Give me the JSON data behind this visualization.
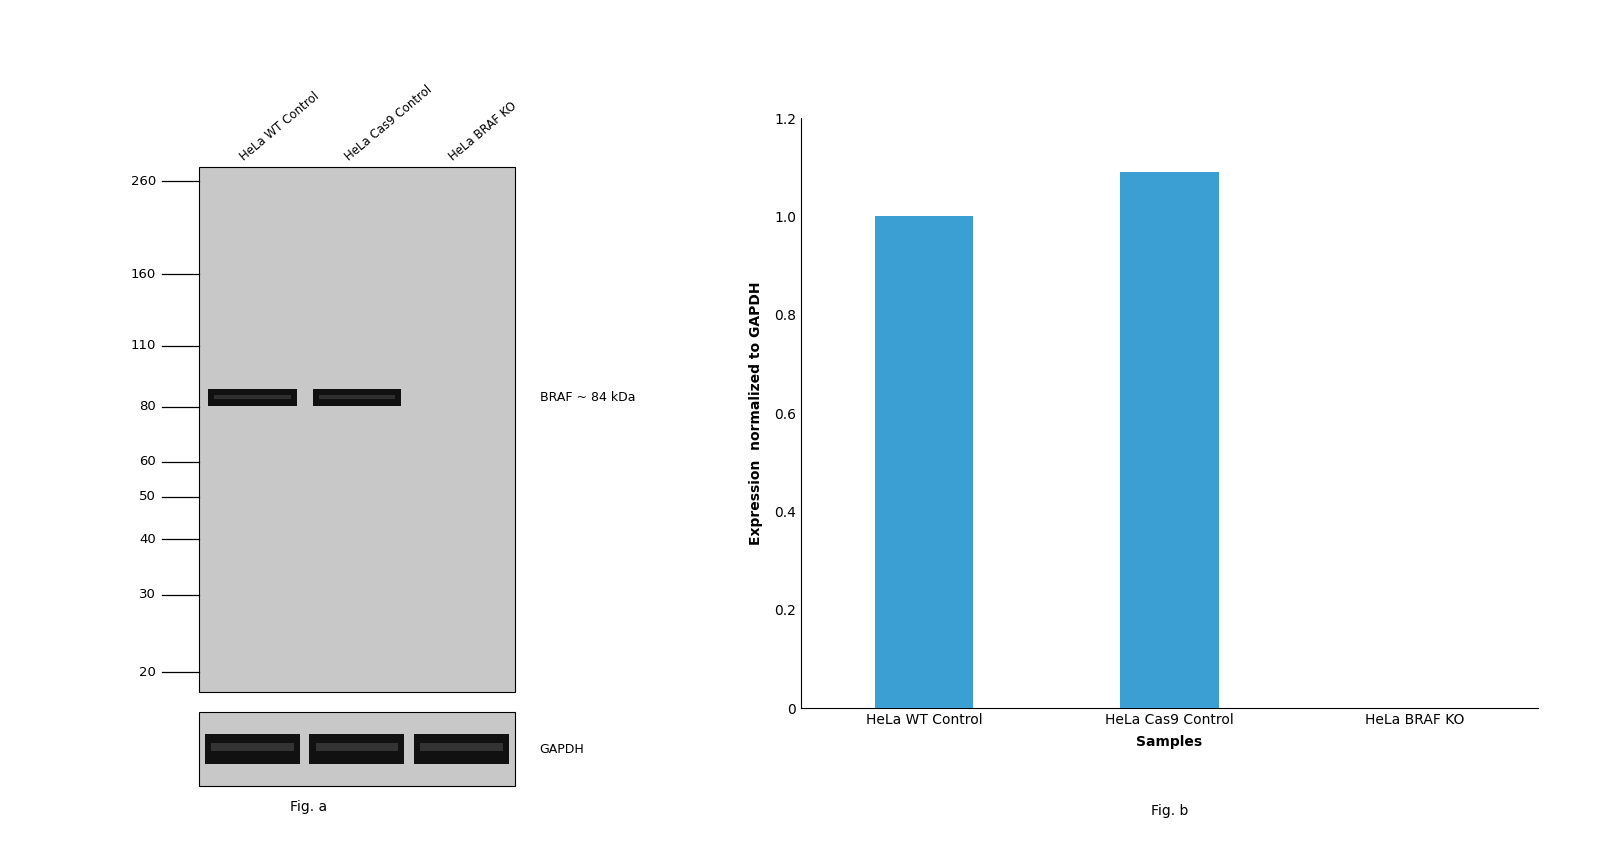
{
  "fig_width": 16.02,
  "fig_height": 8.43,
  "background_color": "#ffffff",
  "western_blot": {
    "mw_markers": [
      260,
      160,
      110,
      80,
      60,
      50,
      40,
      30,
      20
    ],
    "mw_labels": [
      "260",
      "160",
      "110",
      "80",
      "60",
      "50",
      "40",
      "30",
      "20"
    ],
    "gel_bg_color": "#c8c8c8",
    "band_color": "#1a1a1a",
    "band_label": "BRAF ~ 84 kDa",
    "gapdh_label": "GAPDH",
    "col_labels": [
      "HeLa WT Control",
      "HeLa Cas9 Control",
      "HeLa BRAF KO"
    ],
    "fig_a_label": "Fig. a"
  },
  "bar_chart": {
    "categories": [
      "HeLa WT Control",
      "HeLa Cas9 Control",
      "HeLa BRAF KO"
    ],
    "values": [
      1.0,
      1.09,
      0.0
    ],
    "bar_color": "#3b9fd4",
    "ylabel": "Expression  normalized to GAPDH",
    "xlabel": "Samples",
    "ylim": [
      0,
      1.2
    ],
    "yticks": [
      0,
      0.2,
      0.4,
      0.6,
      0.8,
      1.0,
      1.2
    ],
    "fig_b_label": "Fig. b"
  }
}
